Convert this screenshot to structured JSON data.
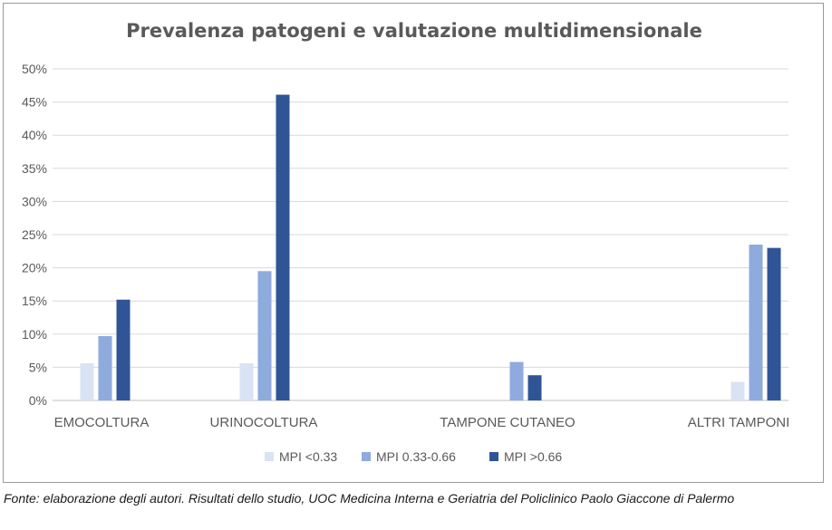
{
  "chart_data": {
    "type": "bar",
    "title": "Prevalenza patogeni e valutazione multidimensionale",
    "categories": [
      "EMOCOLTURA",
      "URINOCOLTURA",
      "TAMPONE CUTANEO",
      "ALTRI TAMPONI"
    ],
    "series": [
      {
        "name": "MPI <0.33",
        "values": [
          5.6,
          5.6,
          0,
          2.8
        ],
        "color": "#dae3f3"
      },
      {
        "name": "MPI 0.33-0.66",
        "values": [
          9.7,
          19.5,
          5.8,
          23.5
        ],
        "color": "#8faadc"
      },
      {
        "name": "MPI >0.66",
        "values": [
          15.2,
          46.1,
          3.8,
          23.0
        ],
        "color": "#2f5597"
      }
    ],
    "ylim": [
      0,
      50
    ],
    "yticks": [
      "0%",
      "5%",
      "10%",
      "15%",
      "20%",
      "25%",
      "30%",
      "35%",
      "40%",
      "45%",
      "50%"
    ],
    "grid": true,
    "legend_position": "bottom"
  },
  "source_note": "Fonte: elaborazione degli autori. Risultati dello studio, UOC Medicina Interna e Geriatria del Policlinico Paolo Giaccone di Palermo"
}
